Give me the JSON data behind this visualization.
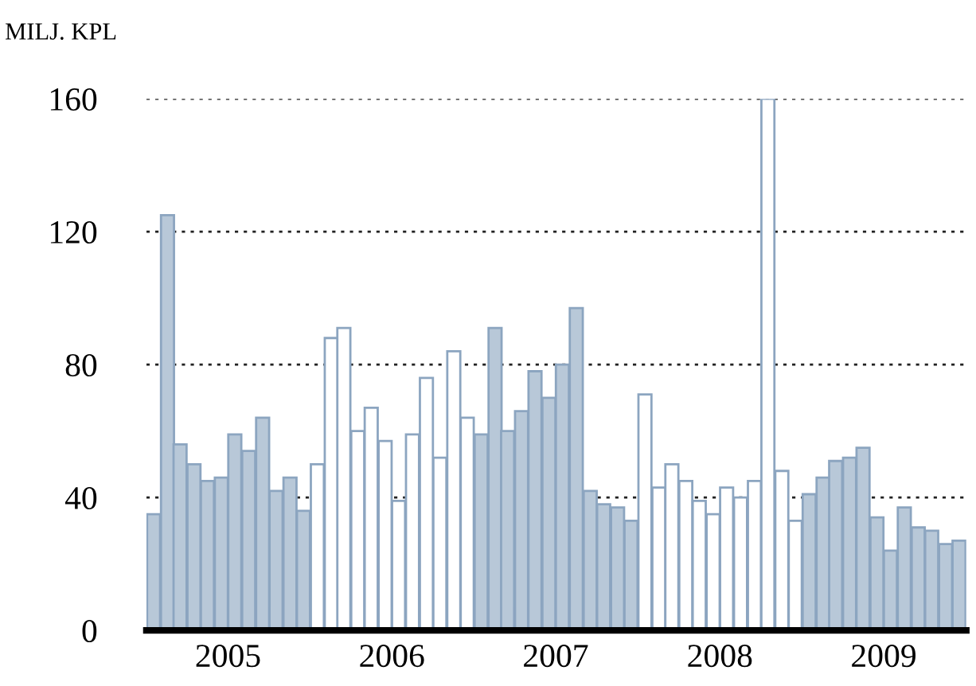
{
  "chart_data": {
    "type": "bar",
    "ylabel": "MILJ. KPL",
    "x": [
      "2005-01",
      "2005-02",
      "2005-03",
      "2005-04",
      "2005-05",
      "2005-06",
      "2005-07",
      "2005-08",
      "2005-09",
      "2005-10",
      "2005-11",
      "2005-12",
      "2006-01",
      "2006-02",
      "2006-03",
      "2006-04",
      "2006-05",
      "2006-06",
      "2006-07",
      "2006-08",
      "2006-09",
      "2006-10",
      "2006-11",
      "2006-12",
      "2007-01",
      "2007-02",
      "2007-03",
      "2007-04",
      "2007-05",
      "2007-06",
      "2007-07",
      "2007-08",
      "2007-09",
      "2007-10",
      "2007-11",
      "2007-12",
      "2008-01",
      "2008-02",
      "2008-03",
      "2008-04",
      "2008-05",
      "2008-06",
      "2008-07",
      "2008-08",
      "2008-09",
      "2008-10",
      "2008-11",
      "2008-12",
      "2009-01",
      "2009-02",
      "2009-03",
      "2009-04",
      "2009-05",
      "2009-06",
      "2009-07",
      "2009-08",
      "2009-09",
      "2009-10",
      "2009-11",
      "2009-12"
    ],
    "values": [
      35,
      125,
      56,
      50,
      45,
      46,
      59,
      54,
      64,
      42,
      46,
      36,
      50,
      88,
      91,
      60,
      67,
      57,
      39,
      59,
      76,
      52,
      84,
      64,
      59,
      91,
      60,
      66,
      78,
      70,
      80,
      97,
      42,
      38,
      37,
      33,
      71,
      43,
      50,
      45,
      39,
      35,
      43,
      40,
      45,
      160,
      48,
      33,
      41,
      46,
      51,
      52,
      55,
      34,
      24,
      37,
      31,
      30,
      26,
      27
    ],
    "colors": [
      "#b8c8d8",
      "#b8c8d8",
      "#b8c8d8",
      "#b8c8d8",
      "#b8c8d8",
      "#b8c8d8",
      "#b8c8d8",
      "#b8c8d8",
      "#b8c8d8",
      "#b8c8d8",
      "#b8c8d8",
      "#b8c8d8",
      "#ffffff",
      "#ffffff",
      "#ffffff",
      "#ffffff",
      "#ffffff",
      "#ffffff",
      "#ffffff",
      "#ffffff",
      "#ffffff",
      "#ffffff",
      "#ffffff",
      "#ffffff",
      "#b8c8d8",
      "#b8c8d8",
      "#b8c8d8",
      "#b8c8d8",
      "#b8c8d8",
      "#b8c8d8",
      "#b8c8d8",
      "#b8c8d8",
      "#b8c8d8",
      "#b8c8d8",
      "#b8c8d8",
      "#b8c8d8",
      "#ffffff",
      "#ffffff",
      "#ffffff",
      "#ffffff",
      "#ffffff",
      "#ffffff",
      "#ffffff",
      "#ffffff",
      "#ffffff",
      "#ffffff",
      "#ffffff",
      "#ffffff",
      "#b8c8d8",
      "#b8c8d8",
      "#b8c8d8",
      "#b8c8d8",
      "#b8c8d8",
      "#b8c8d8",
      "#b8c8d8",
      "#b8c8d8",
      "#b8c8d8",
      "#b8c8d8",
      "#b8c8d8",
      "#b8c8d8"
    ],
    "xlim": [
      "2004-12-16",
      "2009-12-17"
    ],
    "xticks": [
      {
        "value": "2005-06-16",
        "label": "2005"
      },
      {
        "value": "2006-06-16",
        "label": "2006"
      },
      {
        "value": "2007-06-16",
        "label": "2007"
      },
      {
        "value": "2008-06-16",
        "label": "2008"
      },
      {
        "value": "2009-06-16",
        "label": "2009"
      }
    ],
    "ylim": [
      0,
      160
    ],
    "yticks": [
      0,
      40,
      80,
      120,
      160
    ],
    "grid": "y"
  }
}
